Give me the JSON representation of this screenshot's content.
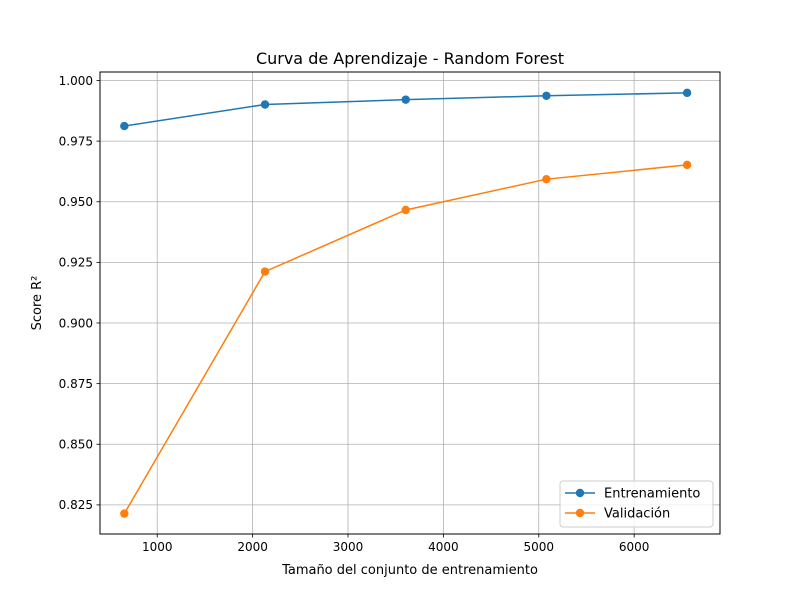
{
  "chart_data": {
    "type": "line",
    "title": "Curva de Aprendizaje - Random Forest",
    "xlabel": "Tamaño del conjunto de entrenamiento",
    "ylabel": "Score R²",
    "xlim": [
      400,
      6900
    ],
    "ylim": [
      0.813,
      1.0035
    ],
    "xticks": [
      1000,
      2000,
      3000,
      4000,
      5000,
      6000
    ],
    "yticks": [
      0.825,
      0.85,
      0.875,
      0.9,
      0.925,
      0.95,
      0.975,
      1.0
    ],
    "ytick_labels": [
      "0.825",
      "0.850",
      "0.875",
      "0.900",
      "0.925",
      "0.950",
      "0.975",
      "1.000"
    ],
    "grid": true,
    "legend_position": "bottom-right",
    "x": [
      655,
      2130,
      3605,
      5080,
      6555
    ],
    "series": [
      {
        "name": "Entrenamiento",
        "color": "#1f77b4",
        "values": [
          0.9812,
          0.9901,
          0.9921,
          0.9937,
          0.9949
        ]
      },
      {
        "name": "Validación",
        "color": "#ff7f0e",
        "values": [
          0.8214,
          0.9212,
          0.9466,
          0.9593,
          0.9652
        ]
      }
    ]
  }
}
